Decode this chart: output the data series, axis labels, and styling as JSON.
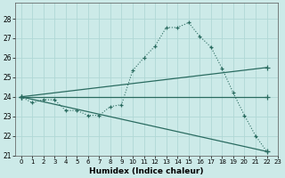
{
  "xlabel": "Humidex (Indice chaleur)",
  "bg_color": "#cceae8",
  "grid_color": "#b0d8d5",
  "line_color": "#2a6b60",
  "xlim": [
    -0.5,
    23
  ],
  "ylim": [
    21,
    28.8
  ],
  "yticks": [
    21,
    22,
    23,
    24,
    25,
    26,
    27,
    28
  ],
  "xticks": [
    0,
    1,
    2,
    3,
    4,
    5,
    6,
    7,
    8,
    9,
    10,
    11,
    12,
    13,
    14,
    15,
    16,
    17,
    18,
    19,
    20,
    21,
    22,
    23
  ],
  "curve_x": [
    0,
    1,
    2,
    3,
    4,
    5,
    6,
    7,
    8,
    9,
    10,
    11,
    12,
    13,
    14,
    15,
    16,
    17,
    18,
    19,
    20,
    21,
    22
  ],
  "curve_y": [
    24.0,
    23.7,
    23.85,
    23.85,
    23.3,
    23.3,
    23.05,
    23.05,
    23.5,
    23.6,
    25.35,
    26.0,
    26.6,
    27.55,
    27.55,
    27.8,
    27.1,
    26.55,
    25.45,
    24.2,
    23.05,
    22.0,
    21.2
  ],
  "line1_x": [
    0,
    22
  ],
  "line1_y": [
    24.0,
    24.0
  ],
  "line2_x": [
    0,
    22
  ],
  "line2_y": [
    24.0,
    25.5
  ],
  "line3_x": [
    0,
    22
  ],
  "line3_y": [
    24.0,
    21.2
  ]
}
